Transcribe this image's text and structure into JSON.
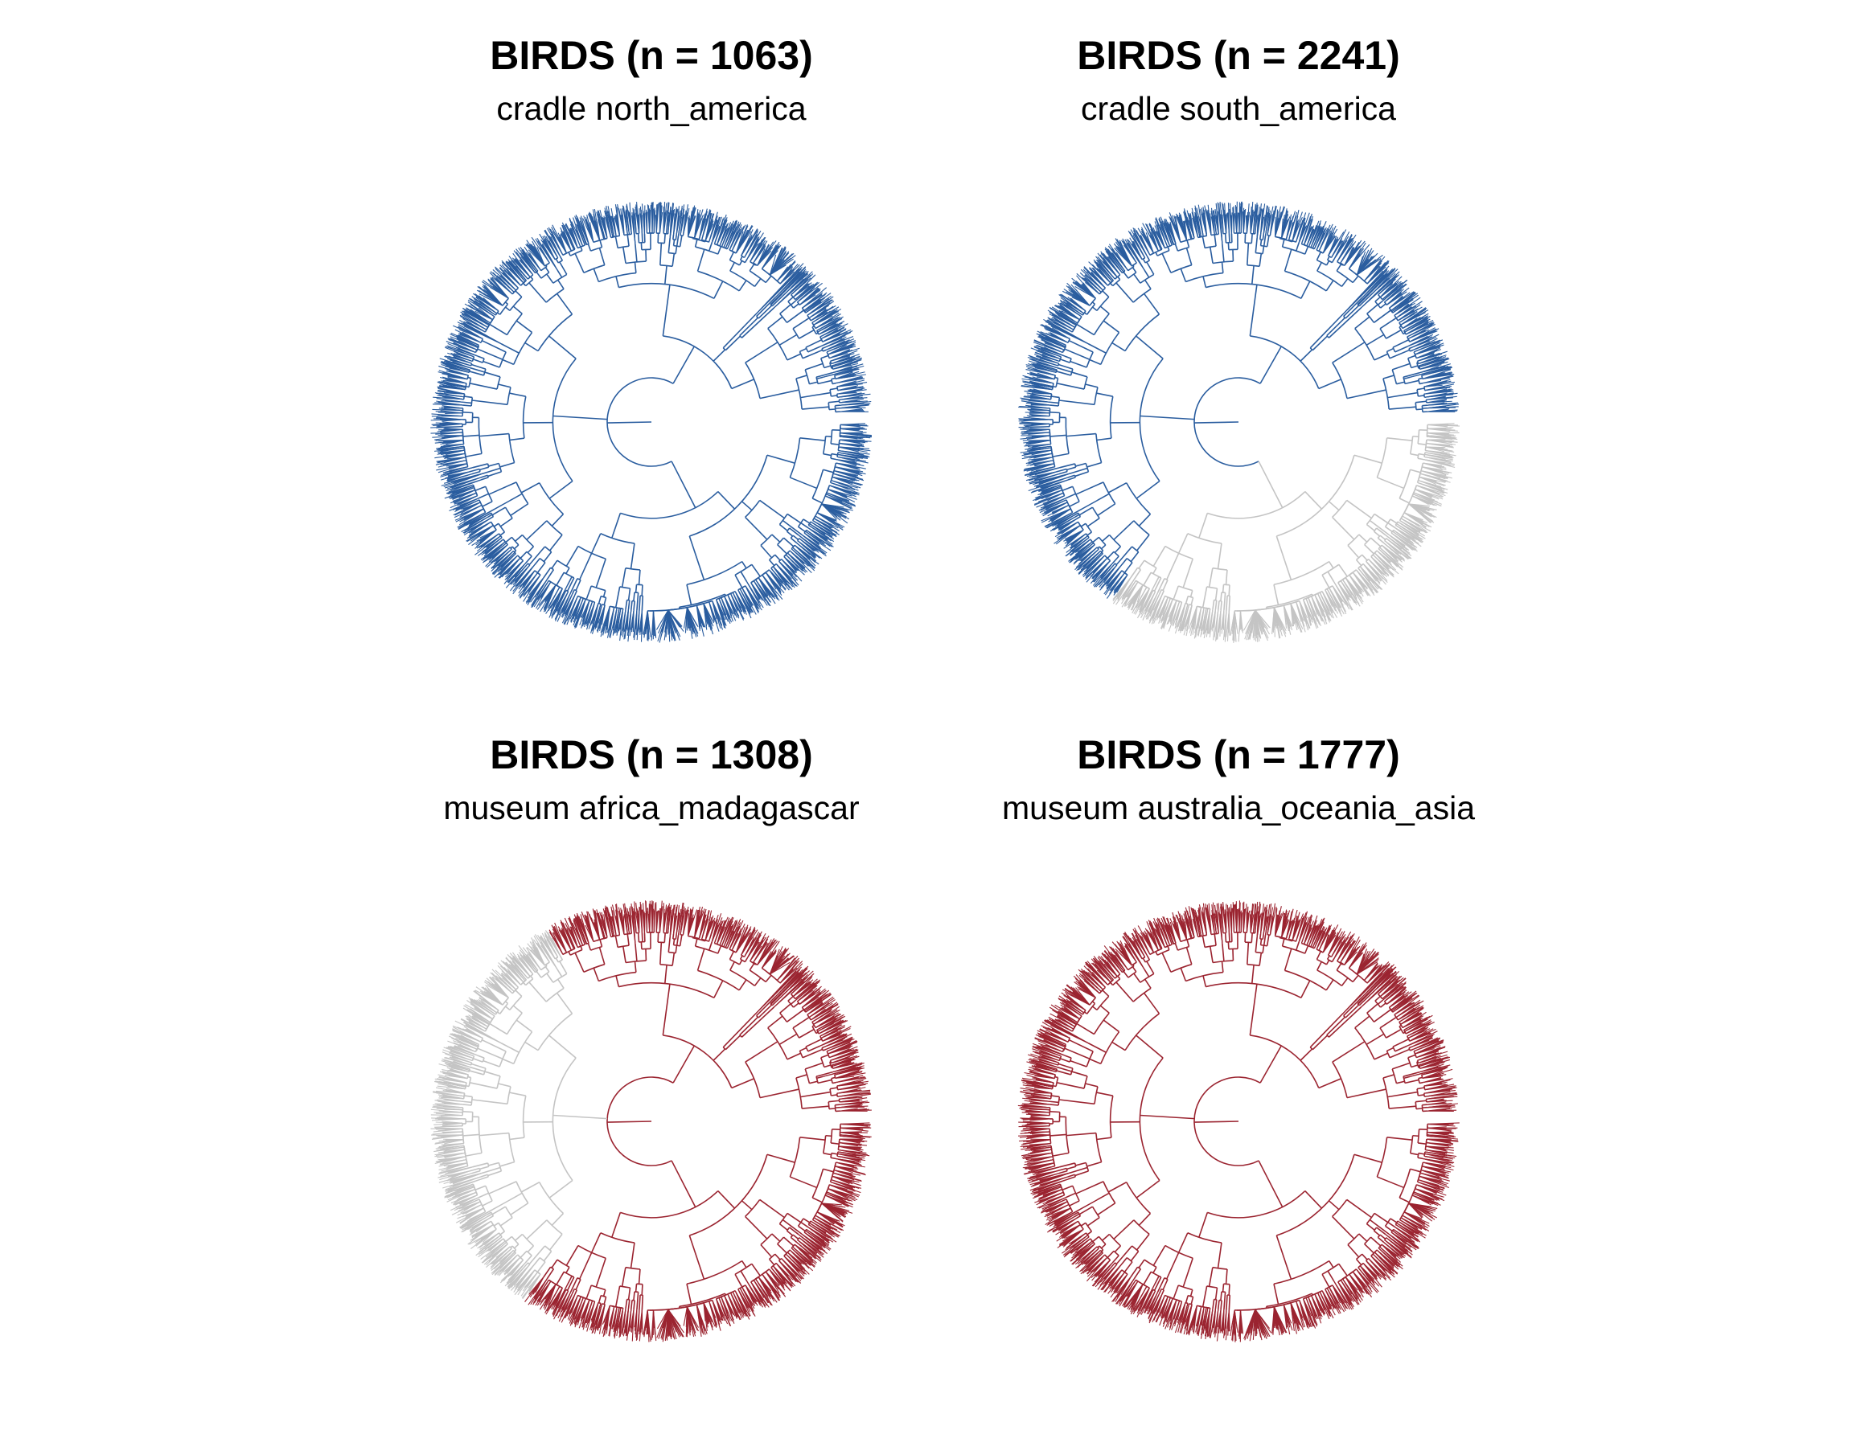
{
  "colors": {
    "background": "#ffffff",
    "cradle": "#2a5d9f",
    "museum": "#9b2430",
    "other_lineages": "#c4c4c4"
  },
  "panels": [
    {
      "title": "BIRDS (n = 1063)",
      "subtitle": "cradle north_america",
      "highlight_color": "#2a5d9f"
    },
    {
      "title": "BIRDS (n = 2241)",
      "subtitle": "cradle south_america",
      "highlight_color": "#2a5d9f"
    },
    {
      "title": "BIRDS (n = 1308)",
      "subtitle": "museum africa_madagascar",
      "highlight_color": "#9b2430"
    },
    {
      "title": "BIRDS (n = 1777)",
      "subtitle": "museum australia_oceania_asia",
      "highlight_color": "#9b2430"
    }
  ]
}
